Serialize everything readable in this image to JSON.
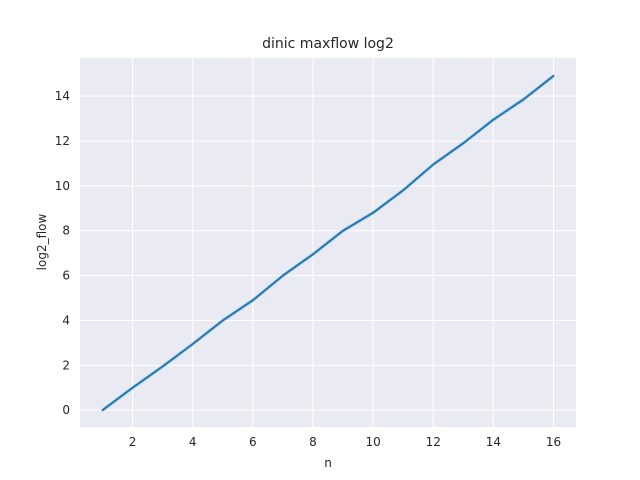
{
  "chart_data": {
    "type": "line",
    "title": "dinic maxflow log2",
    "xlabel": "n",
    "ylabel": "log2_flow",
    "x_ticks": [
      2,
      4,
      6,
      8,
      10,
      12,
      14,
      16
    ],
    "y_ticks": [
      0,
      2,
      4,
      6,
      8,
      10,
      12,
      14
    ],
    "xlim": [
      0.25,
      16.75
    ],
    "ylim": [
      -0.75,
      15.7
    ],
    "grid": true,
    "colors": {
      "background": "#eaeaf2",
      "grid": "#ffffff",
      "line": "#1f77b4",
      "band": "#a6c8e6"
    },
    "series": [
      {
        "x": [
          1,
          2,
          3,
          4,
          5,
          6,
          7,
          8,
          9,
          10,
          11,
          12,
          13,
          14,
          15,
          16
        ],
        "y": [
          0,
          1.0,
          1.95,
          2.95,
          4.0,
          4.9,
          6.0,
          6.95,
          8.0,
          8.8,
          9.8,
          10.95,
          11.9,
          12.95,
          13.85,
          14.9
        ],
        "band": 0.1
      }
    ]
  }
}
